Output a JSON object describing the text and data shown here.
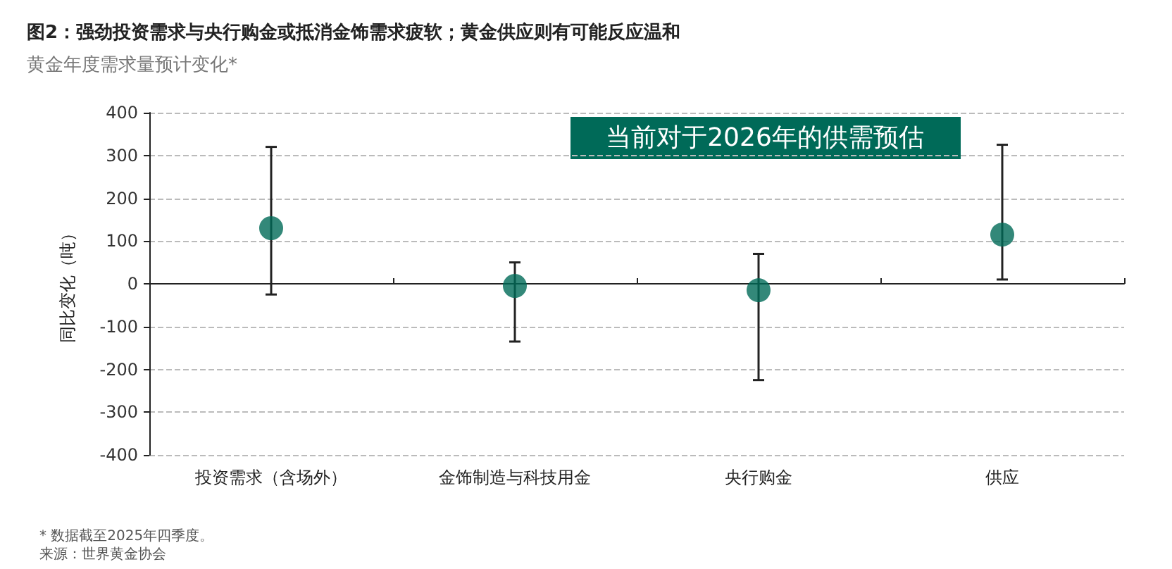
{
  "chart_data": {
    "type": "scatter",
    "title": "图2：强劲投资需求与央行购金或抵消金饰需求疲软；黄金供应则有可能反应温和",
    "subtitle": "黄金年度需求量预计变化*",
    "ylabel": "同比变化（吨）",
    "categories": [
      "投资需求（含场外）",
      "金饰制造与科技用金",
      "央行购金",
      "供应"
    ],
    "values": [
      130,
      -5,
      -15,
      115
    ],
    "errors": [
      [
        -25,
        320
      ],
      [
        -135,
        50
      ],
      [
        -225,
        70
      ],
      [
        10,
        325
      ]
    ],
    "color": "#006a58",
    "marker": "circle",
    "ylim": [
      -400,
      400
    ],
    "yticks": [
      -400,
      -300,
      -200,
      -100,
      0,
      100,
      200,
      300,
      400
    ],
    "grid": "y",
    "annotations": [
      "当前对于2026年的供需预估",
      "* 数据截至2025年四季度。",
      "来源：世界黄金协会"
    ]
  }
}
